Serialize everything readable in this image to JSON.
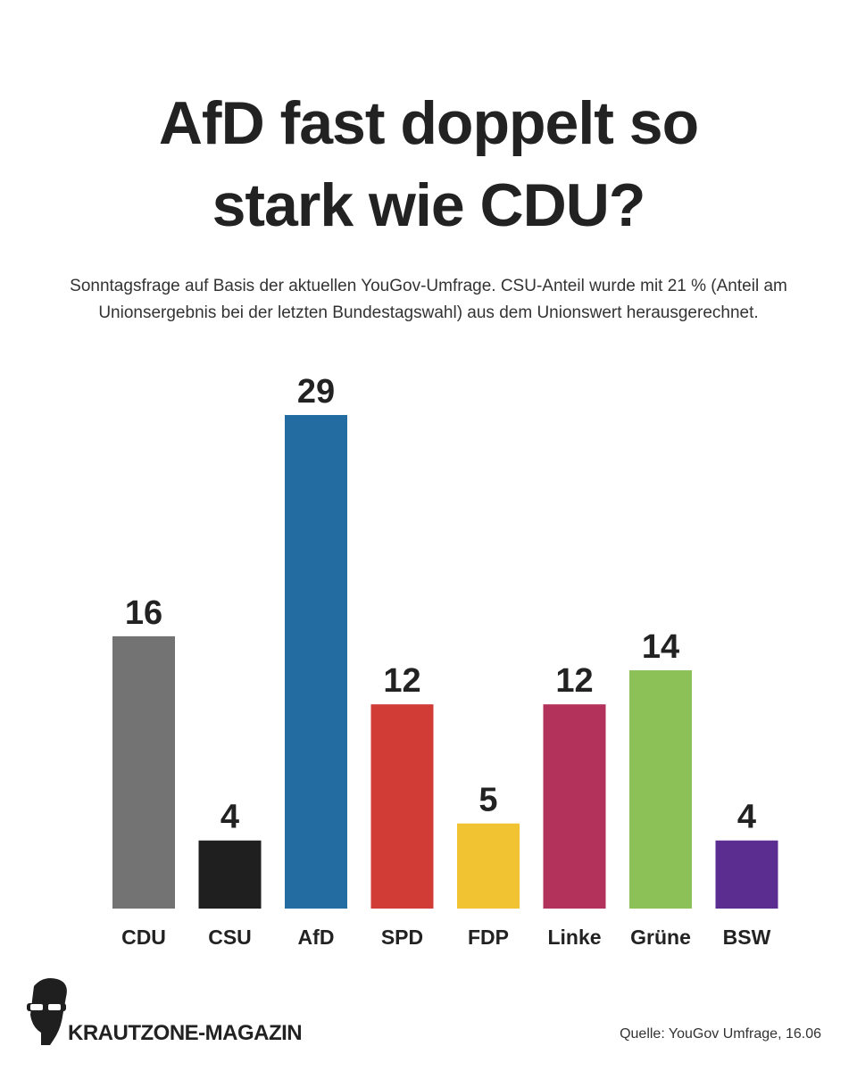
{
  "chart_data": {
    "type": "bar",
    "title": "AfD fast doppelt so stark wie CDU?",
    "subtitle": "Sonntagsfrage auf Basis der aktuellen YouGov-Umfrage. CSU-Anteil wurde mit 21 % (Anteil am Unionsergebnis bei der letzten Bundestagswahl) aus dem Unionswert herausgerechnet.",
    "categories": [
      "CDU",
      "CSU",
      "AfD",
      "SPD",
      "FDP",
      "Linke",
      "Grüne",
      "BSW"
    ],
    "values": [
      16,
      4,
      29,
      12,
      5,
      12,
      14,
      4
    ],
    "colors": [
      "#737373",
      "#1f1f1f",
      "#236ca1",
      "#d13c36",
      "#f1c232",
      "#b3325c",
      "#8bc157",
      "#5b2d91"
    ],
    "brand": "KRAUTZONE-MAGAZIN",
    "source": "Quelle: YouGov Umfrage, 16.06"
  }
}
